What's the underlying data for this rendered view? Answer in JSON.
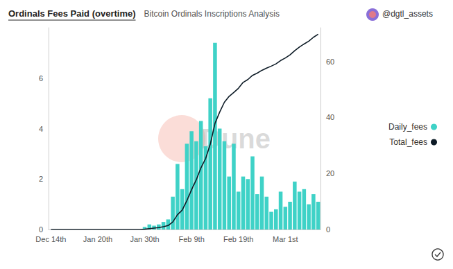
{
  "chart_data": {
    "type": "bar",
    "title": "Ordinals Fees Paid (overtime)",
    "subtitle": "Bitcoin Ordinals Inscriptions Analysis",
    "annotations": [
      "@dgtl_assets",
      "Dune"
    ],
    "categories": [
      "Dec 14th",
      null,
      null,
      null,
      null,
      null,
      null,
      null,
      null,
      null,
      "Jan 20th",
      null,
      null,
      null,
      null,
      null,
      null,
      null,
      null,
      null,
      "Jan 30th",
      null,
      null,
      null,
      null,
      null,
      null,
      null,
      null,
      null,
      "Feb 9th",
      null,
      null,
      null,
      null,
      null,
      null,
      null,
      null,
      null,
      "Feb 19th",
      null,
      null,
      null,
      null,
      null,
      null,
      null,
      null,
      null,
      "Mar 1st",
      null,
      null,
      null,
      null,
      null,
      null,
      null
    ],
    "series": [
      {
        "name": "Daily_fees",
        "type": "bar",
        "color": "#3fd2c7",
        "values": [
          0,
          0,
          0,
          0,
          0,
          0,
          0,
          0,
          0,
          0,
          0,
          0,
          0,
          0,
          0,
          0,
          0,
          0,
          0,
          0,
          0.1,
          0.2,
          0.15,
          0.2,
          0.3,
          0.4,
          1.3,
          2.6,
          1.6,
          3.4,
          3.9,
          3.5,
          4.3,
          3.3,
          5.2,
          7.4,
          4.0,
          3.5,
          2.1,
          3.4,
          1.5,
          2.1,
          2.0,
          2.9,
          1.4,
          2.1,
          1.3,
          0.7,
          0.8,
          1.5,
          0.9,
          1.1,
          1.9,
          1.5,
          1.6,
          1.0,
          1.4,
          1.1
        ]
      },
      {
        "name": "Total_fees",
        "type": "line",
        "axis": "y2",
        "color": "#0d1b26",
        "values": [
          0,
          0,
          0,
          0,
          0,
          0,
          0,
          0,
          0,
          0,
          0,
          0,
          0,
          0,
          0,
          0,
          0,
          0,
          0,
          0,
          0.1,
          0.3,
          0.5,
          0.7,
          1.0,
          1.4,
          2.7,
          5.3,
          6.9,
          10.3,
          14.2,
          17.7,
          22,
          25.3,
          30.5,
          37.9,
          41.9,
          45.4,
          47.5,
          48.9,
          50.4,
          52.5,
          53.5,
          55,
          55.8,
          56.8,
          57.6,
          58.3,
          59.1,
          60.3,
          61.2,
          62.3,
          63.8,
          65.1,
          66.2,
          67.2,
          68.6,
          69.7
        ]
      }
    ],
    "ylim": [
      0,
      8
    ],
    "yticks": [
      0,
      2,
      4,
      6
    ],
    "y2lim": [
      0,
      72
    ],
    "y2ticks": [
      0,
      20,
      40,
      60
    ],
    "grid": false,
    "legend": "right"
  }
}
